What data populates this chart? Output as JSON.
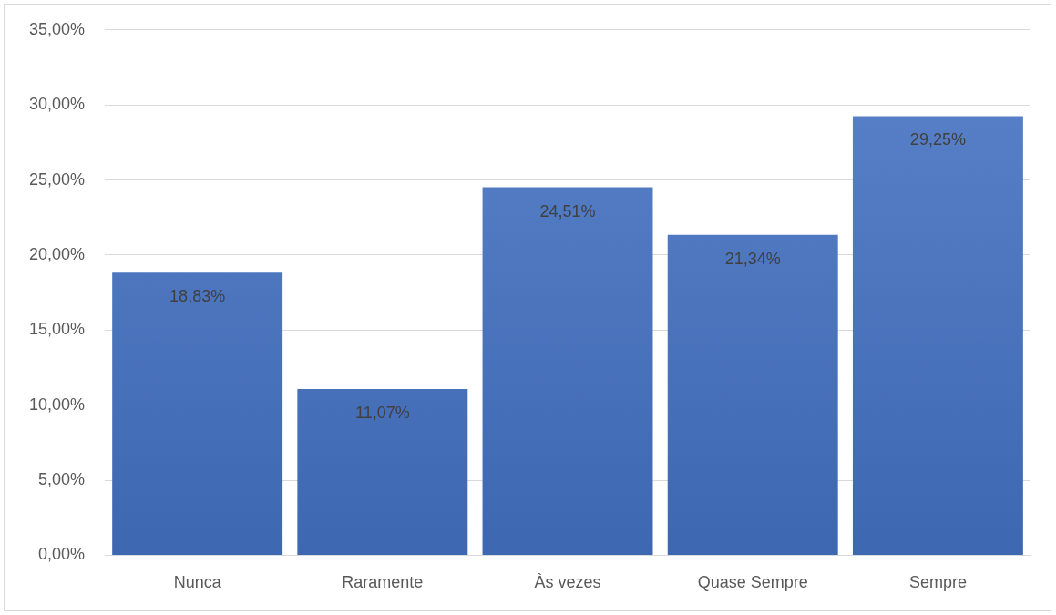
{
  "chart_data": {
    "type": "bar",
    "categories": [
      "Nunca",
      "Raramente",
      "Às vezes",
      "Quase Sempre",
      "Sempre"
    ],
    "values": [
      18.83,
      11.07,
      24.51,
      21.34,
      29.25
    ],
    "value_labels": [
      "18,83%",
      "11,07%",
      "24,51%",
      "21,34%",
      "29,25%"
    ],
    "color": "#4472c4",
    "ylim": [
      0,
      35
    ],
    "yticks": [
      {
        "value": 0,
        "label": "0,00%"
      },
      {
        "value": 5,
        "label": "5,00%"
      },
      {
        "value": 10,
        "label": "10,00%"
      },
      {
        "value": 15,
        "label": "15,00%"
      },
      {
        "value": 20,
        "label": "20,00%"
      },
      {
        "value": 25,
        "label": "25,00%"
      },
      {
        "value": 30,
        "label": "30,00%"
      },
      {
        "value": 35,
        "label": "35,00%"
      }
    ],
    "grid": "y",
    "legend": false
  }
}
